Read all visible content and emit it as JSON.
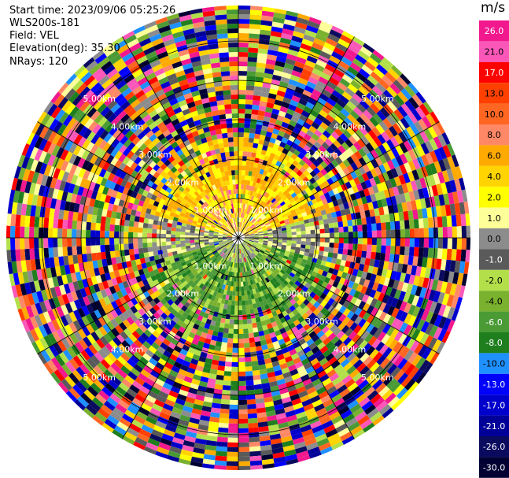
{
  "header": {
    "start_time": "Start time: 2023/09/06 05:25:26",
    "station": "WLS200s-181",
    "field": "Field: VEL",
    "elevation": "Elevation(deg): 35.30",
    "nrays": "NRays: 120"
  },
  "colorbar": {
    "unit": "m/s",
    "ticks": [
      "26.0",
      "21.0",
      "17.0",
      "13.0",
      "10.0",
      "8.0",
      "6.0",
      "4.0",
      "2.0",
      "1.0",
      "0.0",
      "-1.0",
      "-2.0",
      "-4.0",
      "-6.0",
      "-8.0",
      "-10.0",
      "-13.0",
      "-17.0",
      "-21.0",
      "-26.0",
      "-30.0"
    ],
    "colors": [
      "#f2188e",
      "#fb57b9",
      "#ff0000",
      "#ff4000",
      "#ff6622",
      "#ff8866",
      "#ffaa00",
      "#ffd400",
      "#ffff00",
      "#ffff99",
      "#8c8c8c",
      "#5a5a5a",
      "#b3e04a",
      "#7ab12e",
      "#4a9a36",
      "#1f7f1f",
      "#1e90ff",
      "#0000ff",
      "#0000cc",
      "#000099",
      "#0a0a5e",
      "#000033"
    ]
  },
  "chart_data": {
    "type": "ppi",
    "title": "",
    "field": "VEL",
    "unit": "m/s",
    "nrays": 120,
    "range_rings_km": [
      1.0,
      2.0,
      3.0,
      4.0,
      5.0
    ],
    "ring_labels": [
      "1.00km",
      "2.00km",
      "3.00km",
      "4.00km",
      "5.00km"
    ],
    "spokes_deg": [
      0,
      30,
      60,
      90,
      120,
      150,
      180,
      210,
      240,
      270,
      300,
      330
    ],
    "max_range_km": 5.9,
    "velocity_pattern": {
      "north_sector": "approaching/receding positive 2.0 to 8.0 m/s (yellow-orange)",
      "south_sector": "negative -4.0 to -8.0 m/s (green)",
      "east_west": "near 0.0 m/s (grey)",
      "outer_range": "noise, mixed values"
    }
  }
}
